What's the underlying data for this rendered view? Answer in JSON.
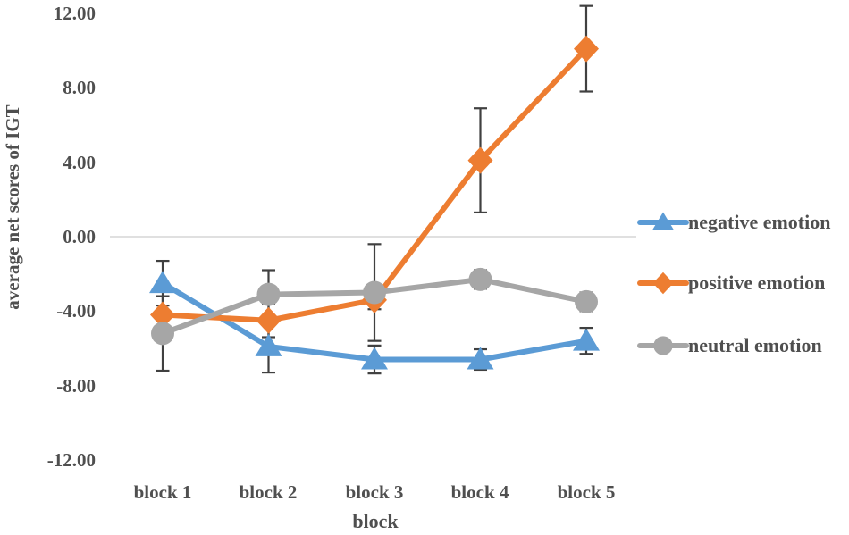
{
  "chart_data": {
    "type": "line",
    "title": "",
    "xlabel": "block",
    "ylabel": "average net scores of IGT",
    "categories": [
      "block 1",
      "block 2",
      "block 3",
      "block 4",
      "block 5"
    ],
    "ylim": [
      -12,
      12
    ],
    "ytick_interval": 4,
    "ytick_labels": [
      "12.00",
      "8.00",
      "4.00",
      "0.00",
      "-4.00",
      "-8.00",
      "-12.00"
    ],
    "grid": "zero-line-only",
    "legend_position": "right",
    "colors": {
      "negative": "#5B9BD5",
      "positive": "#ED7D31",
      "neutral": "#A6A6A6",
      "error_bar": "#404040",
      "zero_line": "#D6D6D6",
      "text": "#4F4F4F"
    },
    "series": [
      {
        "name": "negative emotion",
        "marker": "triangle",
        "color": "#5B9BD5",
        "values": [
          -2.5,
          -5.9,
          -6.6,
          -6.6,
          -5.6
        ],
        "error_bars": [
          1.2,
          1.4,
          0.75,
          0.55,
          0.7
        ]
      },
      {
        "name": "positive emotion",
        "marker": "diamond",
        "color": "#ED7D31",
        "values": [
          -4.2,
          -4.5,
          -3.4,
          4.1,
          10.1
        ],
        "error_bars": [
          1.0,
          0.9,
          0.5,
          2.8,
          2.3
        ]
      },
      {
        "name": "neutral emotion",
        "marker": "circle",
        "color": "#A6A6A6",
        "values": [
          -5.2,
          -3.1,
          -3.0,
          -2.3,
          -3.5
        ],
        "error_bars": [
          2.0,
          1.3,
          2.6,
          0.5,
          0.5
        ]
      }
    ]
  }
}
